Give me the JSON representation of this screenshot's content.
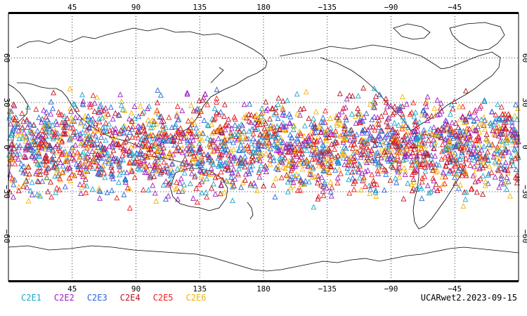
{
  "map": {
    "top_lon_labels": [
      "45",
      "90",
      "135",
      "180",
      "−135",
      "−90",
      "−45"
    ],
    "bottom_lon_labels": [
      "45",
      "90",
      "135",
      "180",
      "−135",
      "−90",
      "−45"
    ],
    "left_lat_labels": [
      "60",
      "30",
      "0",
      "−30",
      "−60"
    ],
    "right_lat_labels": [
      "60",
      "30",
      "0",
      "−30",
      "−60"
    ],
    "lon_values": [
      45,
      90,
      135,
      180,
      -135,
      -90,
      -45
    ],
    "lat_values": [
      60,
      30,
      0,
      -30,
      -60
    ],
    "lon_range": [
      0,
      360
    ],
    "lat_range": [
      -90,
      90
    ],
    "observation_lat_band": [
      -45,
      45
    ],
    "grid": "dotted"
  },
  "legend": {
    "items": [
      {
        "label": "C2E1",
        "color": "#19a7c9"
      },
      {
        "label": "C2E2",
        "color": "#9b1fc2"
      },
      {
        "label": "C2E3",
        "color": "#2766d6"
      },
      {
        "label": "C2E4",
        "color": "#b8141e"
      },
      {
        "label": "C2E5",
        "color": "#ee1c1c"
      },
      {
        "label": "C2E6",
        "color": "#f5b301"
      }
    ]
  },
  "footer": {
    "label": "UCARwet2.2023-09-15"
  },
  "colors": {
    "coastline": "#000000",
    "grid": "#000000",
    "background": "#ffffff"
  }
}
